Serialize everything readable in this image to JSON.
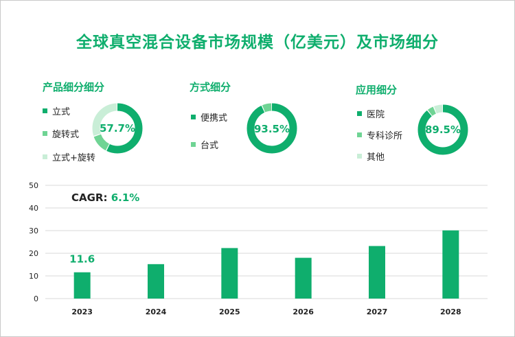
{
  "title": "全球真空混合设备市场规模（亿美元）及市场细分",
  "colors": {
    "primary": "#0fae6d",
    "secondary": "#6fd494",
    "tertiary": "#c9eed7"
  },
  "donuts": [
    {
      "title": "产品细分细分",
      "value_label": "57.7%",
      "segments": [
        {
          "label": "立式",
          "value": 57.7
        },
        {
          "label": "旋转式",
          "value": 12.3
        },
        {
          "label": "立式+旋转",
          "value": 30.0
        }
      ]
    },
    {
      "title": "方式细分",
      "value_label": "93.5%",
      "segments": [
        {
          "label": "便携式",
          "value": 93.5
        },
        {
          "label": "台式",
          "value": 6.5
        }
      ]
    },
    {
      "title": "应用细分",
      "value_label": "89.5%",
      "segments": [
        {
          "label": "医院",
          "value": 89.5
        },
        {
          "label": "专科诊所",
          "value": 4.5
        },
        {
          "label": "其他",
          "value": 6.0
        }
      ]
    }
  ],
  "cagr": {
    "label": "CAGR:",
    "value": "6.1%"
  },
  "chart_data": {
    "type": "bar",
    "categories": [
      "2023",
      "2024",
      "2025",
      "2026",
      "2027",
      "2028"
    ],
    "values": [
      11.6,
      15.2,
      22.3,
      18.0,
      23.2,
      30.1
    ],
    "ylim": [
      0,
      50
    ],
    "yticks": [
      "0",
      "10",
      "20",
      "30",
      "40",
      "50"
    ],
    "grid": true,
    "data_labels": [
      {
        "index": 0,
        "text": "11.6"
      }
    ]
  }
}
